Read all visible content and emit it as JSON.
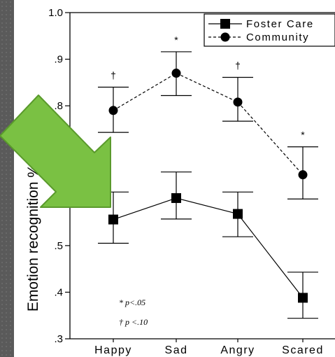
{
  "chart_data": {
    "type": "line",
    "ylabel": "Emotion recognition % correct",
    "categories": [
      "Happy",
      "Sad",
      "Angry",
      "Scared"
    ],
    "ylim": [
      0.3,
      1.0
    ],
    "yticks": [
      {
        "v": 0.3,
        "label": ".3"
      },
      {
        "v": 0.4,
        "label": ".4"
      },
      {
        "v": 0.5,
        "label": ".5"
      },
      {
        "v": 0.6,
        "label": ".6"
      },
      {
        "v": 0.7,
        "label": ".7"
      },
      {
        "v": 0.8,
        "label": ".8"
      },
      {
        "v": 0.9,
        "label": ".9"
      },
      {
        "v": 1.0,
        "label": "1.0"
      }
    ],
    "series": [
      {
        "name": "Foster Care",
        "marker": "square",
        "line": "solid",
        "values": [
          0.556,
          0.602,
          0.568,
          0.388
        ],
        "err_high": [
          0.615,
          0.658,
          0.615,
          0.443
        ],
        "err_low": [
          0.505,
          0.557,
          0.519,
          0.344
        ]
      },
      {
        "name": "Community",
        "marker": "circle",
        "line": "dashed",
        "values": [
          0.79,
          0.87,
          0.808,
          0.652
        ],
        "err_high": [
          0.84,
          0.916,
          0.861,
          0.712
        ],
        "err_low": [
          0.743,
          0.822,
          0.767,
          0.6
        ]
      }
    ],
    "significance_marks": [
      {
        "category": "Happy",
        "symbol": "†"
      },
      {
        "category": "Sad",
        "symbol": "*"
      },
      {
        "category": "Angry",
        "symbol": "†"
      },
      {
        "category": "Scared",
        "symbol": "*"
      }
    ],
    "footnotes": [
      "* p<.05",
      "† p <.10"
    ],
    "legend_position": "top-right",
    "overlay": {
      "shape": "arrow",
      "color": "#7ac143",
      "direction": "down-right"
    }
  }
}
